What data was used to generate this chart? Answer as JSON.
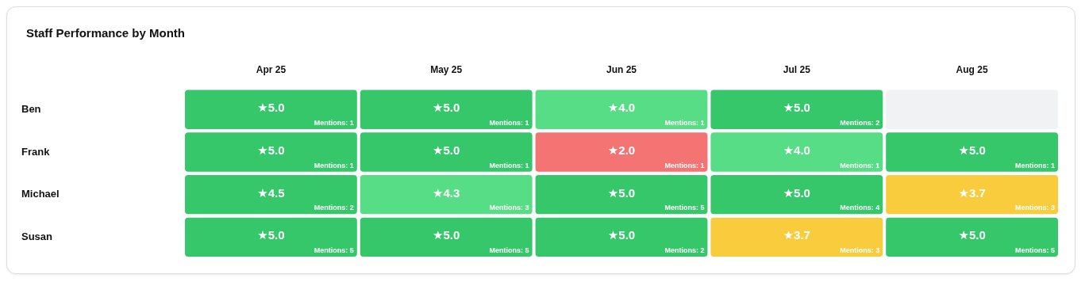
{
  "chart_data": {
    "type": "heatmap",
    "title": "Staff Performance by Month",
    "categories": [
      "Apr 25",
      "May 25",
      "Jun 25",
      "Jul 25",
      "Aug 25"
    ],
    "y_categories": [
      "Ben",
      "Frank",
      "Michael",
      "Susan"
    ],
    "cells": [
      [
        5.0,
        5.0,
        4.0,
        5.0,
        null
      ],
      [
        5.0,
        5.0,
        2.0,
        4.0,
        5.0
      ],
      [
        4.5,
        4.3,
        5.0,
        5.0,
        3.7
      ],
      [
        5.0,
        5.0,
        5.0,
        3.7,
        5.0
      ]
    ],
    "cell_labels": [
      [
        "★5.0",
        "★5.0",
        "★4.0",
        "★5.0",
        null
      ],
      [
        "★5.0",
        "★5.0",
        "★2.0",
        "★4.0",
        "★5.0"
      ],
      [
        "★4.5",
        "★4.3",
        "★5.0",
        "★5.0",
        "★3.7"
      ],
      [
        "★5.0",
        "★5.0",
        "★5.0",
        "★3.7",
        "★5.0"
      ]
    ],
    "colors": [
      [
        "#35c76a",
        "#35c76a",
        "#57dd86",
        "#35c76a",
        null
      ],
      [
        "#35c76a",
        "#35c76a",
        "#f47473",
        "#57dd86",
        "#35c76a"
      ],
      [
        "#35c76a",
        "#57dd86",
        "#35c76a",
        "#35c76a",
        "#f8cc3c"
      ],
      [
        "#35c76a",
        "#35c76a",
        "#35c76a",
        "#f8cc3c",
        "#35c76a"
      ]
    ],
    "annotations": [
      "Mentions: 1",
      "Mentions: 1",
      "Mentions: 1",
      "Mentions: 2",
      "Mentions: 1",
      "Mentions: 1",
      "Mentions: 1",
      "Mentions: 1",
      "Mentions: 1",
      "Mentions: 2",
      "Mentions: 3",
      "Mentions: 5",
      "Mentions: 4",
      "Mentions: 3",
      "Mentions: 5",
      "Mentions: 5",
      "Mentions: 2",
      "Mentions: 3",
      "Mentions: 5"
    ]
  }
}
